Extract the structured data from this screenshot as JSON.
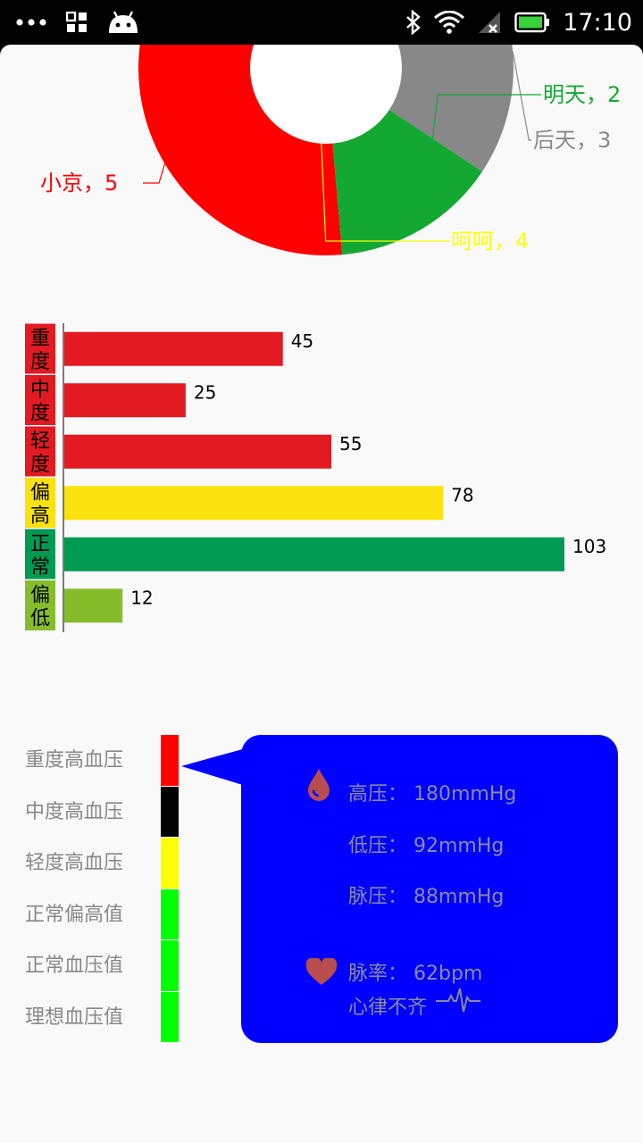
{
  "status_bar": {
    "time": "17:10",
    "icons": [
      "more-icon",
      "apps-icon",
      "android-icon",
      "bluetooth-icon",
      "wifi-icon",
      "signal-icon",
      "battery-icon"
    ]
  },
  "chart_data": [
    {
      "type": "pie",
      "style": "donut",
      "slices": [
        {
          "label": "小京，5",
          "value": 5,
          "color": "#ff0000"
        },
        {
          "label": "呵呵，4",
          "value": 4,
          "color": "#ffff00"
        },
        {
          "label": "后天，3",
          "value": 3,
          "color": "#888888"
        },
        {
          "label": "明天，2",
          "value": 2,
          "color": "#13a832"
        }
      ]
    },
    {
      "type": "bar",
      "orientation": "horizontal",
      "categories": [
        "重度",
        "中度",
        "轻度",
        "偏高",
        "正常",
        "偏低"
      ],
      "values": [
        45,
        25,
        55,
        78,
        103,
        12
      ],
      "colors": [
        "#e31a22",
        "#e31a22",
        "#e31a22",
        "#fbe10d",
        "#009a52",
        "#86bc2c"
      ],
      "label_colors": [
        "#e31a22",
        "#e31a22",
        "#e31a22",
        "#fbe10d",
        "#009a52",
        "#86bc2c"
      ]
    }
  ],
  "bp_scale": {
    "levels": [
      {
        "label": "重度高血压",
        "color": "#ff0000"
      },
      {
        "label": "中度高血压",
        "color": "#000000"
      },
      {
        "label": "轻度高血压",
        "color": "#ffff00"
      },
      {
        "label": "正常偏高值",
        "color": "#00ff00"
      },
      {
        "label": "正常血压值",
        "color": "#00ff00"
      },
      {
        "label": "理想血压值",
        "color": "#00ff00"
      }
    ]
  },
  "bp_reading": {
    "systolic": "高压： 180mmHg",
    "diastolic": "低压： 92mmHg",
    "pulse_pressure": "脉压： 88mmHg",
    "pulse_rate": "脉率： 62bpm",
    "rhythm": "心律不齐",
    "icons": [
      "blood-drop-icon",
      "heart-icon",
      "ecg-wave-icon"
    ]
  }
}
